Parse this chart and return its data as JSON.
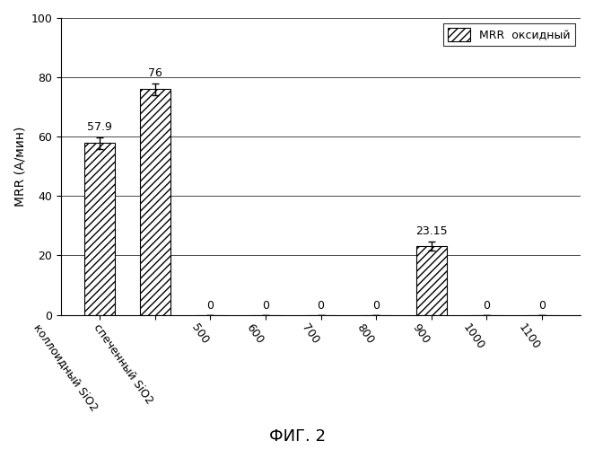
{
  "categories": [
    "коллоидный SiO2",
    "спеченный SiO2",
    "500",
    "600",
    "700",
    "800",
    "900",
    "1000",
    "1100"
  ],
  "values": [
    57.9,
    76,
    0,
    0,
    0,
    0,
    23.15,
    0,
    0
  ],
  "errors": [
    2.0,
    2.0,
    0,
    0,
    0,
    0,
    1.5,
    0,
    0
  ],
  "bar_color": "#ffffff",
  "hatch": "////",
  "bar_edge_color": "#000000",
  "ylabel": "MRR (А/мин)",
  "figure_title": "ФИГ. 2",
  "ylim": [
    0,
    100
  ],
  "yticks": [
    0,
    20,
    40,
    60,
    80,
    100
  ],
  "legend_label": "MRR  оксидный",
  "bar_labels": [
    "57.9",
    "76",
    "0",
    "0",
    "0",
    "0",
    "23.15",
    "0",
    "0"
  ],
  "bar_label_fontsize": 9,
  "tick_label_fontsize": 9,
  "background_color": "#ffffff",
  "label_rotation": -55,
  "bar_width": 0.55
}
